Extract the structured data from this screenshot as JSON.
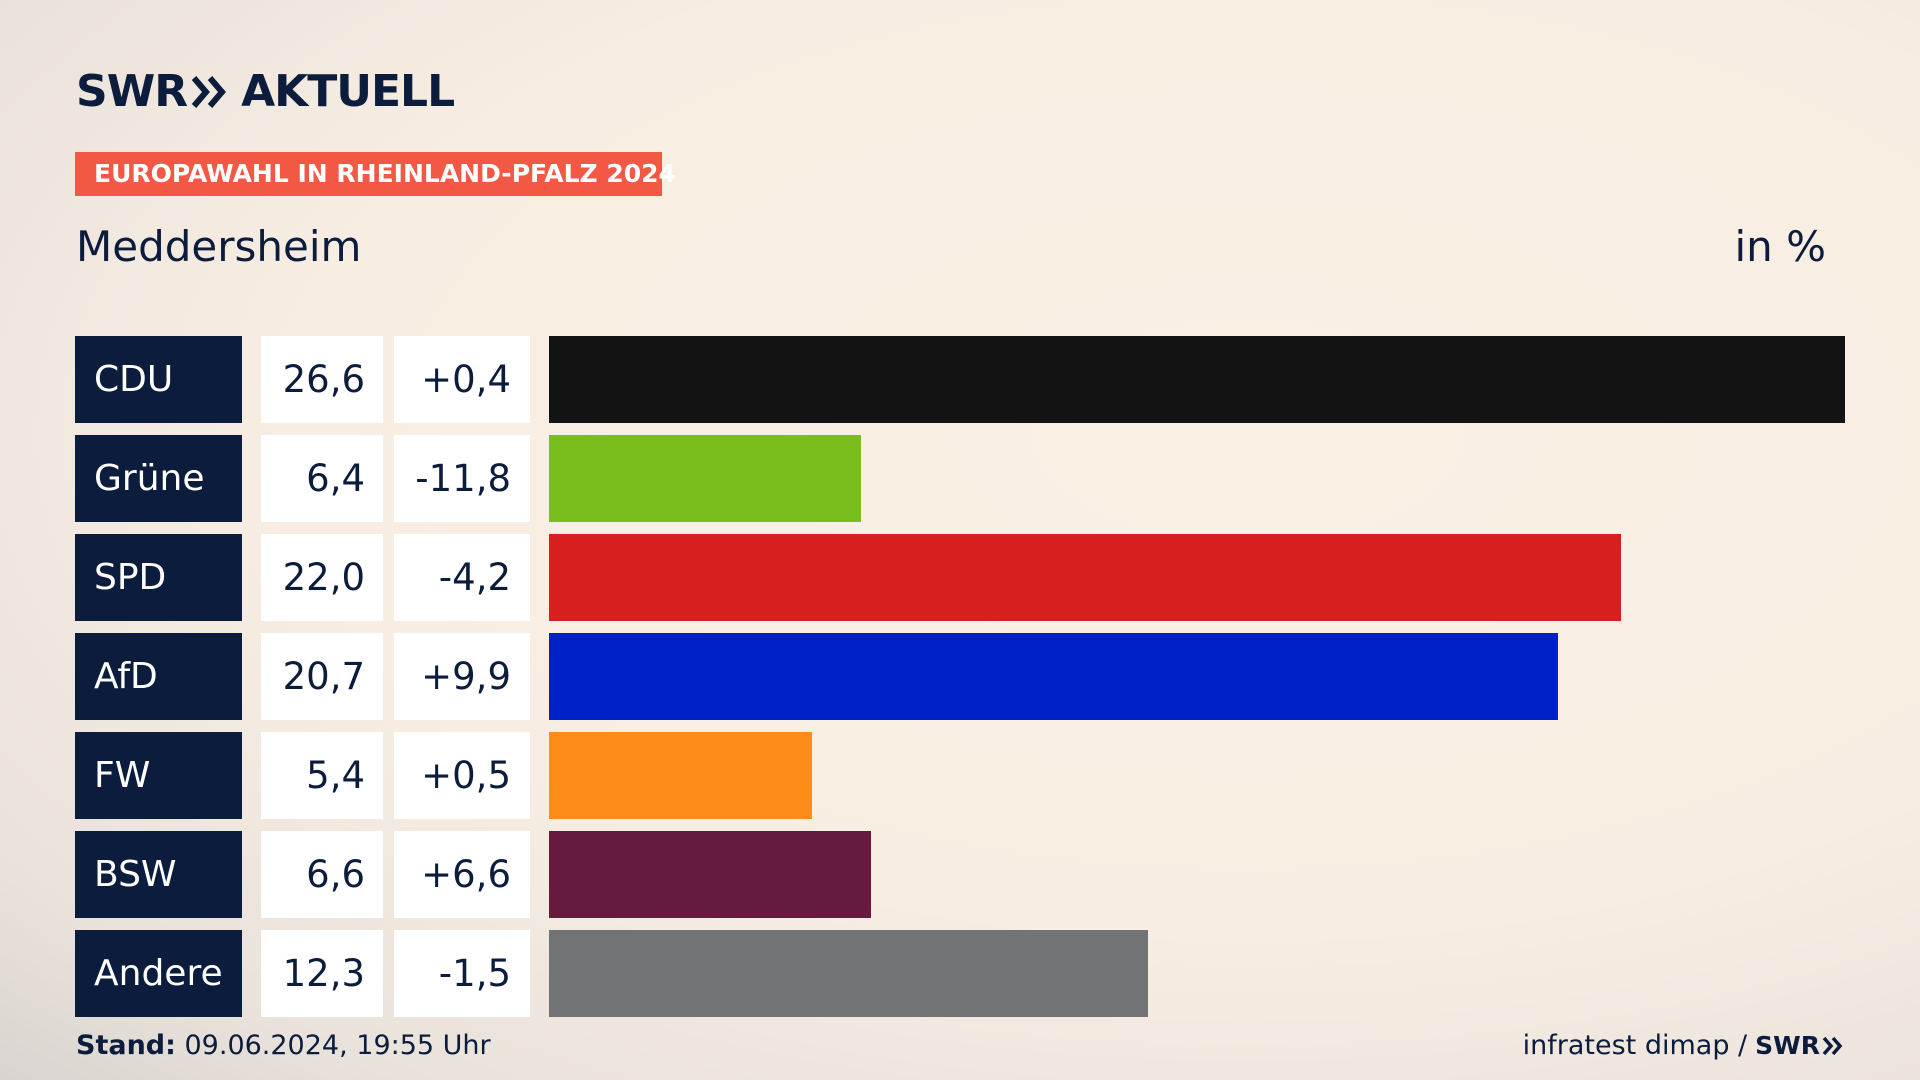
{
  "brand": {
    "swr": "SWR",
    "aktuell": "AKTUELL"
  },
  "header": {
    "tag": "EUROPAWAHL IN RHEINLAND-PFALZ 2024",
    "place": "Meddersheim",
    "unit": "in %"
  },
  "footer": {
    "stand_label": "Stand:",
    "stand_value": " 09.06.2024, 19:55 Uhr",
    "source": "infratest dimap /",
    "source_brand": "SWR"
  },
  "chart_data": {
    "type": "bar",
    "orientation": "horizontal",
    "title": "Meddersheim",
    "subtitle": "EUROPAWAHL IN RHEINLAND-PFALZ 2024",
    "unit": "in %",
    "max_value": 26.6,
    "rows": [
      {
        "party": "CDU",
        "value": 26.6,
        "value_label": "26,6",
        "change_label": "+0,4",
        "color": "#131313"
      },
      {
        "party": "Grüne",
        "value": 6.4,
        "value_label": "6,4",
        "change_label": "-11,8",
        "color": "#7abe1e"
      },
      {
        "party": "SPD",
        "value": 22.0,
        "value_label": "22,0",
        "change_label": "-4,2",
        "color": "#d71f1f"
      },
      {
        "party": "AfD",
        "value": 20.7,
        "value_label": "20,7",
        "change_label": "+9,9",
        "color": "#0021c8"
      },
      {
        "party": "FW",
        "value": 5.4,
        "value_label": "5,4",
        "change_label": "+0,5",
        "color": "#fe8c18"
      },
      {
        "party": "BSW",
        "value": 6.6,
        "value_label": "6,6",
        "change_label": "+6,6",
        "color": "#661a3e"
      },
      {
        "party": "Andere",
        "value": 12.3,
        "value_label": "12,3",
        "change_label": "-1,5",
        "color": "#717374"
      }
    ]
  }
}
